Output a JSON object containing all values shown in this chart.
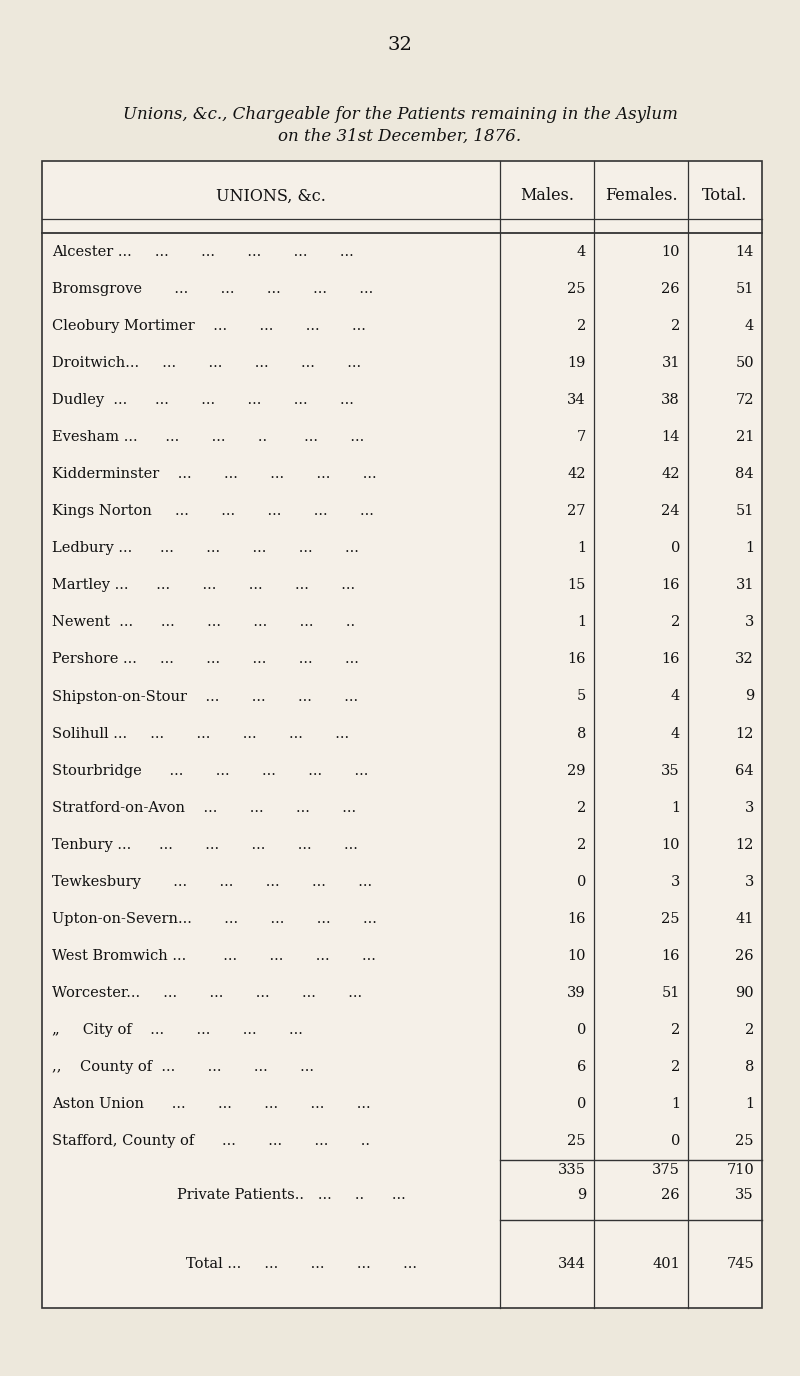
{
  "page_number": "32",
  "title_line1": "Unions, &c., Chargeable for the Patients remaining in the Asylum",
  "title_line2": "on the 31st December, 1876.",
  "col_header_union": "UNIONS, &c.",
  "col_header_males": "Males.",
  "col_header_females": "Females.",
  "col_header_total": "Total.",
  "rows": [
    [
      "Alcester ...     ...       ...       ...       ...       ...",
      "4",
      "10",
      "14"
    ],
    [
      "Bromsgrove       ...       ...       ...       ...       ...",
      "25",
      "26",
      "51"
    ],
    [
      "Cleobury Mortimer    ...       ...       ...       ...",
      "2",
      "2",
      "4"
    ],
    [
      "Droitwich...     ...       ...       ...       ...       ...",
      "19",
      "31",
      "50"
    ],
    [
      "Dudley  ...      ...       ...       ...       ...       ...",
      "34",
      "38",
      "72"
    ],
    [
      "Evesham ...      ...       ...       ..        ...       ...",
      "7",
      "14",
      "21"
    ],
    [
      "Kidderminster    ...       ...       ...       ...       ...",
      "42",
      "42",
      "84"
    ],
    [
      "Kings Norton     ...       ...       ...       ...       ...",
      "27",
      "24",
      "51"
    ],
    [
      "Ledbury ...      ...       ...       ...       ...       ...",
      "1",
      "0",
      "1"
    ],
    [
      "Martley ...      ...       ...       ...       ...       ...",
      "15",
      "16",
      "31"
    ],
    [
      "Newent  ...      ...       ...       ...       ...       ..",
      "1",
      "2",
      "3"
    ],
    [
      "Pershore ...     ...       ...       ...       ...       ...",
      "16",
      "16",
      "32"
    ],
    [
      "Shipston-on-Stour    ...       ...       ...       ...",
      "5",
      "4",
      "9"
    ],
    [
      "Solihull ...     ...       ...       ...       ...       ...",
      "8",
      "4",
      "12"
    ],
    [
      "Stourbridge      ...       ...       ...       ...       ...",
      "29",
      "35",
      "64"
    ],
    [
      "Stratford-on-Avon    ...       ...       ...       ...",
      "2",
      "1",
      "3"
    ],
    [
      "Tenbury ...      ...       ...       ...       ...       ...",
      "2",
      "10",
      "12"
    ],
    [
      "Tewkesbury       ...       ...       ...       ...       ...",
      "0",
      "3",
      "3"
    ],
    [
      "Upton-on-Severn...       ...       ...       ...       ...",
      "16",
      "25",
      "41"
    ],
    [
      "West Bromwich ...        ...       ...       ...       ...",
      "10",
      "16",
      "26"
    ],
    [
      "Worcester...     ...       ...       ...       ...       ...",
      "39",
      "51",
      "90"
    ],
    [
      "„     City of    ...       ...       ...       ...",
      "0",
      "2",
      "2"
    ],
    [
      ",,    County of  ...       ...       ...       ...",
      "6",
      "2",
      "8"
    ],
    [
      "Aston Union      ...       ...       ...       ...       ...",
      "0",
      "1",
      "1"
    ],
    [
      "Stafford, County of      ...       ...       ...       ..",
      "25",
      "0",
      "25"
    ]
  ],
  "subtotal": [
    "",
    "335",
    "375",
    "710"
  ],
  "private_label": "Private Patients..   ...     ..      ...",
  "private": [
    "",
    "9",
    "26",
    "35"
  ],
  "total_label": "Total ...     ...       ...       ...       ...",
  "total": [
    "",
    "344",
    "401",
    "745"
  ],
  "bg_color": "#ede8dc",
  "text_color": "#111111",
  "line_color": "#333333",
  "table_bg": "#f5f0e8"
}
